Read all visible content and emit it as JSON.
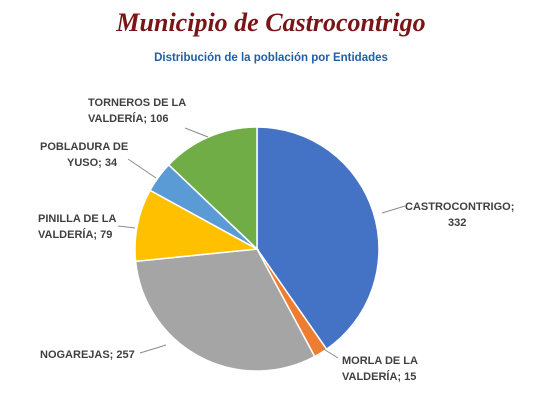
{
  "header": {
    "title": "Municipio de Castrocontrigo",
    "subtitle": "Distribución de la población por Entidades"
  },
  "chart_data": {
    "type": "pie",
    "title": "Distribución de la población por Entidades",
    "slices": [
      {
        "label": "CASTROCONTRIGO",
        "value": 332,
        "color": "#4472c4",
        "label_lines": [
          "CASTROCONTRIGO;",
          "332"
        ]
      },
      {
        "label": "MORLA DE LA VALDERÍA",
        "value": 15,
        "color": "#ed7d31",
        "label_lines": [
          "MORLA DE LA",
          "VALDERÍA; 15"
        ]
      },
      {
        "label": "NOGAREJAS",
        "value": 257,
        "color": "#a5a5a5",
        "label_lines": [
          "NOGAREJAS; 257"
        ]
      },
      {
        "label": "PINILLA DE LA VALDERÍA",
        "value": 79,
        "color": "#ffc000",
        "label_lines": [
          "PINILLA DE LA",
          "VALDERÍA; 79"
        ]
      },
      {
        "label": "POBLADURA DE YUSO",
        "value": 34,
        "color": "#5b9bd5",
        "label_lines": [
          "POBLADURA DE",
          "YUSO; 34"
        ]
      },
      {
        "label": "TORNEROS DE LA VALDERÍA",
        "value": 106,
        "color": "#70ad47",
        "label_lines": [
          "TORNEROS DE LA",
          "VALDERÍA; 106"
        ]
      }
    ],
    "start_angle": "12 o'clock",
    "direction": "clockwise",
    "legend": "none"
  }
}
